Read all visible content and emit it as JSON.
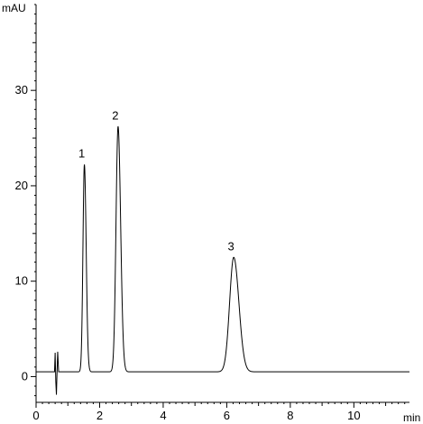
{
  "colors": {
    "trace": "#000000",
    "axis": "#000000",
    "background": "#ffffff"
  },
  "chart_data": {
    "type": "line",
    "title": "",
    "xlabel": "min",
    "ylabel": "mAU",
    "xlim": [
      0,
      11.75
    ],
    "ylim": [
      -2.7,
      39
    ],
    "x_ticks": [
      0,
      2,
      4,
      6,
      8,
      10
    ],
    "y_ticks": [
      0,
      10,
      20,
      30
    ],
    "grid": false,
    "baseline": 0.5,
    "disturbance": [
      {
        "x": 0.58,
        "y": 0.5
      },
      {
        "x": 0.6,
        "y": 2.5
      },
      {
        "x": 0.62,
        "y": -0.5
      },
      {
        "x": 0.64,
        "y": -1.9
      },
      {
        "x": 0.66,
        "y": 0.5
      },
      {
        "x": 0.68,
        "y": 2.6
      },
      {
        "x": 0.71,
        "y": 0.5
      }
    ],
    "peaks": [
      {
        "label": "1",
        "retention_time": 1.52,
        "height": 22.2,
        "width": 0.045
      },
      {
        "label": "2",
        "retention_time": 2.58,
        "height": 26.2,
        "width": 0.065
      },
      {
        "label": "3",
        "retention_time": 6.22,
        "height": 12.5,
        "width": 0.13
      }
    ],
    "series": [
      {
        "values_description": ""
      }
    ]
  }
}
